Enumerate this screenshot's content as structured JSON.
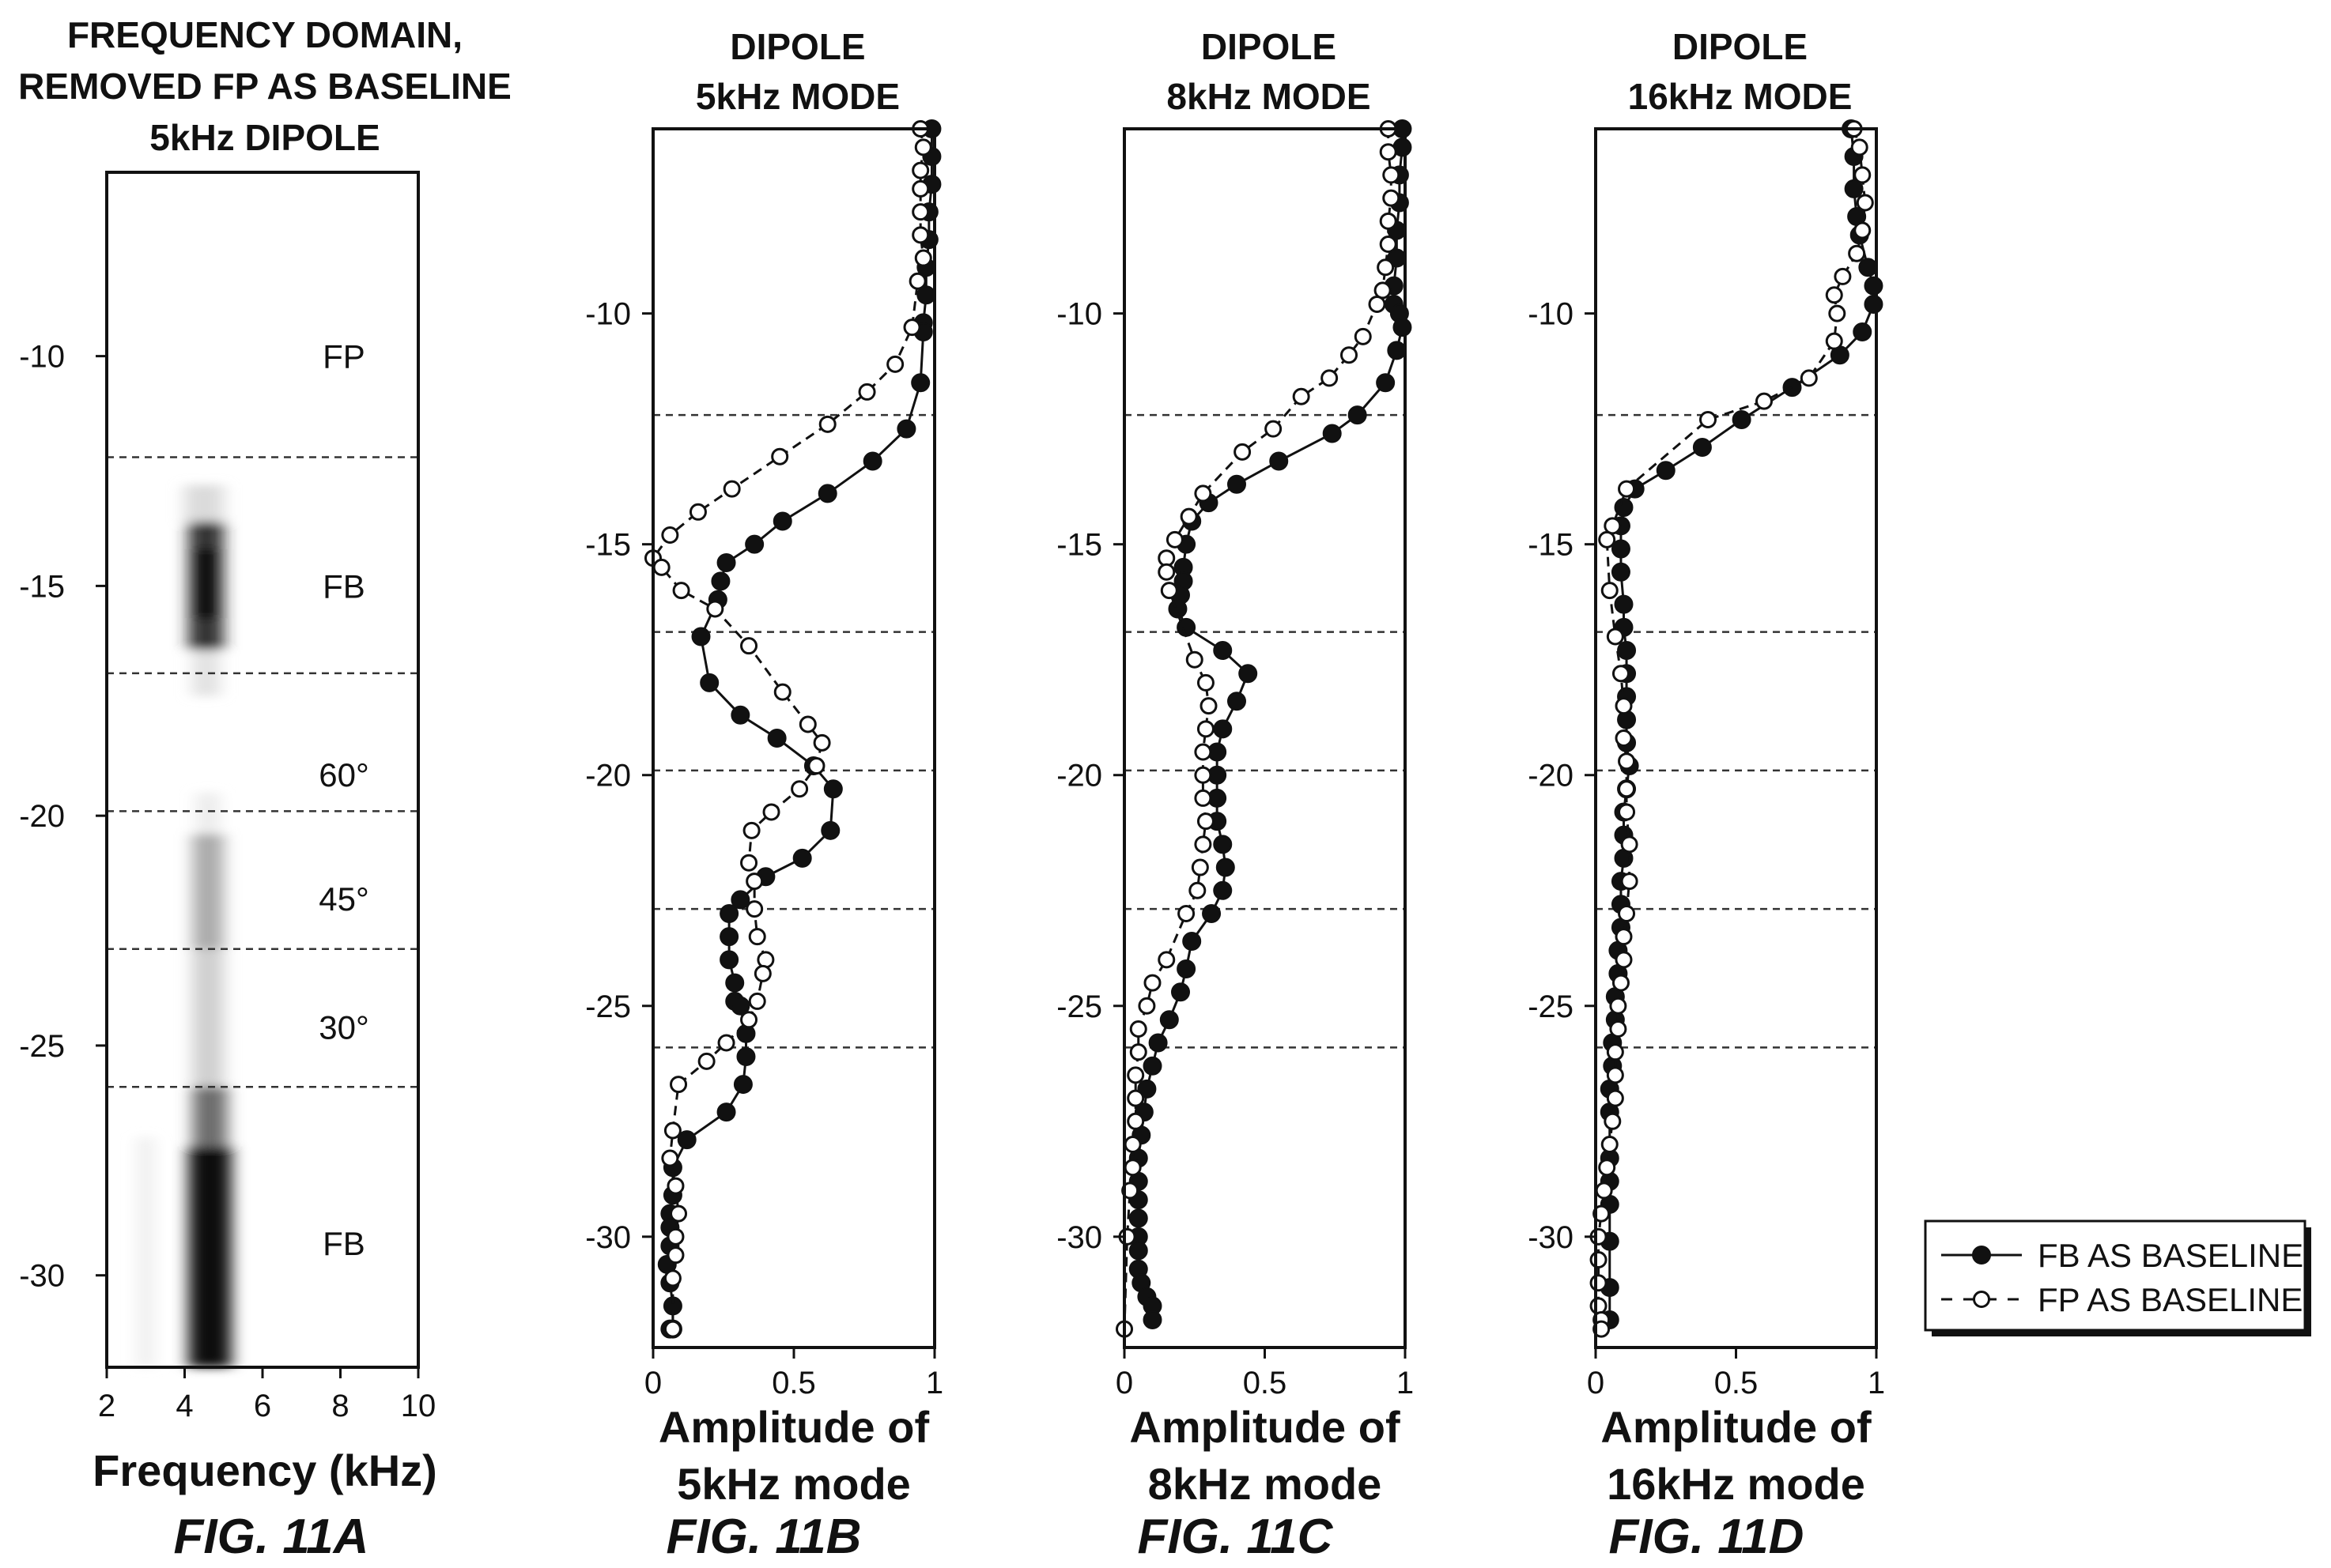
{
  "chart_data": [
    {
      "type": "heatmap",
      "figure_label": "FIG. 11A",
      "title_lines": [
        "FREQUENCY DOMAIN,",
        "REMOVED FP AS BASELINE",
        "5kHz DIPOLE"
      ],
      "xlabel": "Frequency (kHz)",
      "xlim": [
        2,
        10
      ],
      "ylim": [
        -32,
        -6
      ],
      "xticks": [
        "2",
        "4",
        "6",
        "8",
        "10"
      ],
      "yticks": [
        {
          "value": -10,
          "label": "-10"
        },
        {
          "value": -15,
          "label": "-15"
        },
        {
          "value": -20,
          "label": "-20"
        },
        {
          "value": -25,
          "label": "-25"
        },
        {
          "value": -30,
          "label": "-30"
        }
      ],
      "boundaries": [
        -12.2,
        -16.9,
        -19.9,
        -22.9,
        -25.9
      ],
      "zones": [
        {
          "label": "FP",
          "depth": -10
        },
        {
          "label": "FB",
          "depth": -15
        },
        {
          "label": "60°",
          "depth": -19.1
        },
        {
          "label": "45°",
          "depth": -21.8
        },
        {
          "label": "30°",
          "depth": -24.6
        },
        {
          "label": "FB",
          "depth": -29.3
        }
      ],
      "energy_bands": [
        {
          "y0": -12.8,
          "y1": -13.6,
          "x0": 4.0,
          "x1": 5.0,
          "intensity": 0.15
        },
        {
          "y0": -13.6,
          "y1": -16.4,
          "x0": 4.1,
          "x1": 5.0,
          "intensity": 0.85
        },
        {
          "y0": -14.2,
          "y1": -15.7,
          "x0": 4.3,
          "x1": 4.8,
          "intensity": 1.0
        },
        {
          "y0": -16.4,
          "y1": -17.4,
          "x0": 4.2,
          "x1": 4.9,
          "intensity": 0.12
        },
        {
          "y0": -19.5,
          "y1": -20.4,
          "x0": 4.3,
          "x1": 4.9,
          "intensity": 0.08
        },
        {
          "y0": -20.4,
          "y1": -22.9,
          "x0": 4.2,
          "x1": 5.0,
          "intensity": 0.35
        },
        {
          "y0": -22.9,
          "y1": -25.9,
          "x0": 4.2,
          "x1": 5.0,
          "intensity": 0.2
        },
        {
          "y0": -25.9,
          "y1": -27.2,
          "x0": 4.2,
          "x1": 5.1,
          "intensity": 0.6
        },
        {
          "y0": -27.2,
          "y1": -32.0,
          "x0": 4.1,
          "x1": 5.2,
          "intensity": 1.0
        },
        {
          "y0": -27.0,
          "y1": -32.0,
          "x0": 2.8,
          "x1": 3.2,
          "intensity": 0.07
        }
      ]
    },
    {
      "type": "line",
      "figure_label": "FIG. 11B",
      "title_lines": [
        "DIPOLE",
        "5kHz MODE"
      ],
      "xlabel_lines": [
        "Amplitude of",
        "5kHz mode"
      ],
      "xlim": [
        0,
        1
      ],
      "ylim": [
        -32.4,
        -6.0
      ],
      "xticks": [
        {
          "value": 0,
          "label": "0"
        },
        {
          "value": 0.5,
          "label": "0.5"
        },
        {
          "value": 1,
          "label": "1"
        }
      ],
      "yticks": [
        {
          "value": -10,
          "label": "-10"
        },
        {
          "value": -15,
          "label": "-15"
        },
        {
          "value": -20,
          "label": "-20"
        },
        {
          "value": -25,
          "label": "-25"
        },
        {
          "value": -30,
          "label": "-30"
        }
      ],
      "boundaries": [
        -12.2,
        -16.9,
        -19.9,
        -22.9,
        -25.9
      ],
      "series": [
        {
          "name": "FB AS BASELINE",
          "style": "solid-filled",
          "x": [
            0.99,
            0.99,
            0.99,
            0.98,
            0.98,
            0.97,
            0.97,
            0.96,
            0.96,
            0.95,
            0.9,
            0.78,
            0.62,
            0.46,
            0.36,
            0.26,
            0.24,
            0.23,
            0.17,
            0.2,
            0.31,
            0.44,
            0.57,
            0.64,
            0.63,
            0.53,
            0.4,
            0.31,
            0.27,
            0.27,
            0.27,
            0.29,
            0.29,
            0.31,
            0.33,
            0.33,
            0.32,
            0.26,
            0.12,
            0.07,
            0.07,
            0.06,
            0.06,
            0.06,
            0.05,
            0.06,
            0.07,
            0.07,
            0.06
          ],
          "y": [
            -6.0,
            -6.6,
            -7.2,
            -7.8,
            -8.4,
            -9.0,
            -9.6,
            -10.2,
            -10.4,
            -11.5,
            -12.5,
            -13.2,
            -13.9,
            -14.5,
            -15.0,
            -15.4,
            -15.8,
            -16.2,
            -17.0,
            -18.0,
            -18.7,
            -19.2,
            -19.8,
            -20.3,
            -21.2,
            -21.8,
            -22.2,
            -22.7,
            -23.0,
            -23.5,
            -24.0,
            -24.5,
            -24.9,
            -25.0,
            -25.6,
            -26.1,
            -26.7,
            -27.3,
            -27.9,
            -28.5,
            -29.1,
            -29.5,
            -29.8,
            -30.2,
            -30.6,
            -31.0,
            -31.5,
            -32.0,
            -32.0
          ],
          "color": "#111111"
        },
        {
          "name": "FP AS BASELINE",
          "style": "dashed-open",
          "x": [
            0.95,
            0.96,
            0.95,
            0.95,
            0.95,
            0.95,
            0.96,
            0.94,
            0.92,
            0.86,
            0.76,
            0.62,
            0.45,
            0.28,
            0.16,
            0.06,
            0.0,
            0.03,
            0.1,
            0.22,
            0.34,
            0.46,
            0.55,
            0.6,
            0.58,
            0.52,
            0.42,
            0.35,
            0.34,
            0.36,
            0.36,
            0.37,
            0.4,
            0.39,
            0.37,
            0.34,
            0.26,
            0.19,
            0.09,
            0.07,
            0.06,
            0.08,
            0.09,
            0.08,
            0.08,
            0.07,
            0.07
          ],
          "y": [
            -6.0,
            -6.4,
            -6.9,
            -7.3,
            -7.8,
            -8.3,
            -8.8,
            -9.3,
            -10.3,
            -11.1,
            -11.7,
            -12.4,
            -13.1,
            -13.8,
            -14.3,
            -14.8,
            -15.3,
            -15.5,
            -16.0,
            -16.4,
            -17.2,
            -18.2,
            -18.9,
            -19.3,
            -19.8,
            -20.3,
            -20.8,
            -21.2,
            -21.9,
            -22.3,
            -22.9,
            -23.5,
            -24.0,
            -24.3,
            -24.9,
            -25.3,
            -25.8,
            -26.2,
            -26.7,
            -27.7,
            -28.3,
            -28.9,
            -29.5,
            -30.0,
            -30.4,
            -30.9,
            -32.0
          ],
          "color": "#111111"
        }
      ]
    },
    {
      "type": "line",
      "figure_label": "FIG. 11C",
      "title_lines": [
        "DIPOLE",
        "8kHz MODE"
      ],
      "xlabel_lines": [
        "Amplitude of",
        "8kHz mode"
      ],
      "xlim": [
        0,
        1
      ],
      "ylim": [
        -32.4,
        -6.0
      ],
      "xticks": [
        {
          "value": 0,
          "label": "0"
        },
        {
          "value": 0.5,
          "label": "0.5"
        },
        {
          "value": 1,
          "label": "1"
        }
      ],
      "yticks": [
        {
          "value": -10,
          "label": "-10"
        },
        {
          "value": -15,
          "label": "-15"
        },
        {
          "value": -20,
          "label": "-20"
        },
        {
          "value": -25,
          "label": "-25"
        },
        {
          "value": -30,
          "label": "-30"
        }
      ],
      "boundaries": [
        -12.2,
        -16.9,
        -19.9,
        -22.9,
        -25.9
      ],
      "series": [
        {
          "name": "FB AS BASELINE",
          "style": "solid-filled",
          "x": [
            0.99,
            0.99,
            0.98,
            0.98,
            0.97,
            0.97,
            0.96,
            0.96,
            0.98,
            0.99,
            0.97,
            0.93,
            0.83,
            0.74,
            0.55,
            0.4,
            0.3,
            0.24,
            0.22,
            0.21,
            0.21,
            0.2,
            0.19,
            0.22,
            0.35,
            0.44,
            0.4,
            0.35,
            0.33,
            0.33,
            0.33,
            0.33,
            0.35,
            0.36,
            0.35,
            0.31,
            0.24,
            0.22,
            0.2,
            0.16,
            0.12,
            0.1,
            0.08,
            0.07,
            0.06,
            0.05,
            0.05,
            0.05,
            0.05,
            0.05,
            0.05,
            0.05,
            0.06,
            0.08,
            0.1,
            0.1
          ],
          "y": [
            -6.0,
            -6.4,
            -7.0,
            -7.6,
            -8.2,
            -8.8,
            -9.4,
            -9.8,
            -10.0,
            -10.3,
            -10.8,
            -11.5,
            -12.2,
            -12.6,
            -13.2,
            -13.7,
            -14.1,
            -14.5,
            -15.0,
            -15.5,
            -15.8,
            -16.1,
            -16.4,
            -16.8,
            -17.3,
            -17.8,
            -18.4,
            -19.0,
            -19.5,
            -20.0,
            -20.5,
            -21.0,
            -21.5,
            -22.0,
            -22.5,
            -23.0,
            -23.6,
            -24.2,
            -24.7,
            -25.3,
            -25.8,
            -26.3,
            -26.8,
            -27.3,
            -27.8,
            -28.3,
            -28.8,
            -29.2,
            -29.6,
            -30.0,
            -30.3,
            -30.7,
            -31.0,
            -31.3,
            -31.5,
            -31.8
          ],
          "color": "#111111"
        },
        {
          "name": "FP AS BASELINE",
          "style": "dashed-open",
          "x": [
            0.94,
            0.94,
            0.95,
            0.95,
            0.94,
            0.94,
            0.93,
            0.92,
            0.9,
            0.85,
            0.8,
            0.73,
            0.63,
            0.53,
            0.42,
            0.28,
            0.23,
            0.18,
            0.15,
            0.15,
            0.16,
            0.25,
            0.29,
            0.3,
            0.29,
            0.28,
            0.28,
            0.28,
            0.29,
            0.28,
            0.27,
            0.26,
            0.22,
            0.15,
            0.1,
            0.08,
            0.05,
            0.05,
            0.04,
            0.04,
            0.04,
            0.03,
            0.03,
            0.02,
            0.01,
            0.0
          ],
          "y": [
            -6.0,
            -6.5,
            -7.0,
            -7.5,
            -8.0,
            -8.5,
            -9.0,
            -9.5,
            -9.8,
            -10.5,
            -10.9,
            -11.4,
            -11.8,
            -12.5,
            -13.0,
            -13.9,
            -14.4,
            -14.9,
            -15.3,
            -15.6,
            -16.0,
            -17.5,
            -18.0,
            -18.5,
            -19.0,
            -19.5,
            -20.0,
            -20.5,
            -21.0,
            -21.5,
            -22.0,
            -22.5,
            -23.0,
            -24.0,
            -24.5,
            -25.0,
            -25.5,
            -26.0,
            -26.5,
            -27.0,
            -27.5,
            -28.0,
            -28.5,
            -29.0,
            -30.0,
            -32.0
          ],
          "color": "#111111"
        }
      ]
    },
    {
      "type": "line",
      "figure_label": "FIG. 11D",
      "title_lines": [
        "DIPOLE",
        "16kHz MODE"
      ],
      "xlabel_lines": [
        "Amplitude of",
        "16kHz mode"
      ],
      "xlim": [
        0,
        1
      ],
      "ylim": [
        -32.4,
        -6.0
      ],
      "xticks": [
        {
          "value": 0,
          "label": "0"
        },
        {
          "value": 0.5,
          "label": "0.5"
        },
        {
          "value": 1,
          "label": "1"
        }
      ],
      "yticks": [
        {
          "value": -10,
          "label": "-10"
        },
        {
          "value": -15,
          "label": "-15"
        },
        {
          "value": -20,
          "label": "-20"
        },
        {
          "value": -25,
          "label": "-25"
        },
        {
          "value": -30,
          "label": "-30"
        }
      ],
      "boundaries": [
        -12.2,
        -16.9,
        -19.9,
        -22.9,
        -25.9
      ],
      "series": [
        {
          "name": "FB AS BASELINE",
          "style": "solid-filled",
          "x": [
            0.91,
            0.92,
            0.92,
            0.93,
            0.94,
            0.97,
            0.99,
            0.99,
            0.95,
            0.87,
            0.7,
            0.52,
            0.38,
            0.25,
            0.14,
            0.1,
            0.09,
            0.09,
            0.09,
            0.1,
            0.1,
            0.11,
            0.11,
            0.11,
            0.11,
            0.11,
            0.12,
            0.11,
            0.1,
            0.1,
            0.1,
            0.09,
            0.09,
            0.09,
            0.08,
            0.08,
            0.07,
            0.07,
            0.06,
            0.06,
            0.05,
            0.05,
            0.05,
            0.05,
            0.05,
            0.05,
            0.05,
            0.05
          ],
          "y": [
            -6.0,
            -6.6,
            -7.3,
            -7.9,
            -8.3,
            -9.0,
            -9.4,
            -9.8,
            -10.4,
            -10.9,
            -11.6,
            -12.3,
            -12.9,
            -13.4,
            -13.8,
            -14.2,
            -14.6,
            -15.1,
            -15.6,
            -16.3,
            -16.8,
            -17.3,
            -17.8,
            -18.3,
            -18.8,
            -19.3,
            -19.8,
            -20.3,
            -20.8,
            -21.3,
            -21.8,
            -22.3,
            -22.8,
            -23.3,
            -23.8,
            -24.3,
            -24.8,
            -25.3,
            -25.8,
            -26.3,
            -26.8,
            -27.3,
            -28.3,
            -28.8,
            -29.3,
            -30.1,
            -31.1,
            -31.8
          ],
          "color": "#111111"
        },
        {
          "name": "FP AS BASELINE",
          "style": "dashed-open",
          "x": [
            0.92,
            0.94,
            0.95,
            0.96,
            0.95,
            0.93,
            0.88,
            0.85,
            0.86,
            0.85,
            0.76,
            0.6,
            0.4,
            0.11,
            0.06,
            0.04,
            0.05,
            0.07,
            0.09,
            0.1,
            0.1,
            0.11,
            0.11,
            0.11,
            0.12,
            0.12,
            0.11,
            0.1,
            0.1,
            0.09,
            0.08,
            0.08,
            0.07,
            0.07,
            0.07,
            0.06,
            0.05,
            0.04,
            0.03,
            0.02,
            0.01,
            0.01,
            0.01,
            0.01,
            0.02,
            0.02
          ],
          "y": [
            -6.0,
            -6.4,
            -7.0,
            -7.6,
            -8.2,
            -8.7,
            -9.2,
            -9.6,
            -10.0,
            -10.6,
            -11.4,
            -11.9,
            -12.3,
            -13.8,
            -14.6,
            -14.9,
            -16.0,
            -17.0,
            -17.8,
            -18.5,
            -19.2,
            -19.7,
            -20.3,
            -20.8,
            -21.5,
            -22.3,
            -23.0,
            -23.5,
            -24.0,
            -24.5,
            -25.0,
            -25.5,
            -26.0,
            -26.5,
            -27.0,
            -27.5,
            -28.0,
            -28.5,
            -29.0,
            -29.5,
            -30.0,
            -30.5,
            -31.0,
            -31.5,
            -31.8,
            -32.0
          ]
        }
      ]
    }
  ],
  "legend": {
    "items": [
      {
        "label": "FB AS BASELINE",
        "style": "solid-filled"
      },
      {
        "label": "FP AS BASELINE",
        "style": "dashed-open"
      }
    ]
  }
}
